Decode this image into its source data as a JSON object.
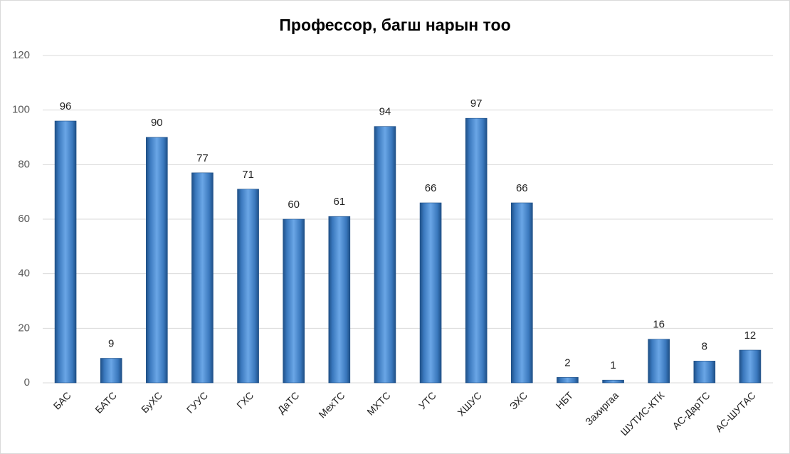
{
  "chart_data": {
    "type": "bar",
    "title": "Профессор, багш нарын тоо",
    "categories": [
      "БАС",
      "БАТС",
      "БуХС",
      "ГУУС",
      "ГХС",
      "ДаТС",
      "МехТС",
      "МХТС",
      "УТС",
      "ХШУС",
      "ЭХС",
      "НБТ",
      "Захиргаа",
      "ШУТИС-КТК",
      "АС-ДарТС",
      "АС-ШУТАС"
    ],
    "values": [
      96,
      9,
      90,
      77,
      71,
      60,
      61,
      94,
      66,
      97,
      66,
      2,
      1,
      16,
      8,
      12
    ],
    "color": "#4f8fd6",
    "ylim": [
      0,
      120
    ],
    "yticks": [
      0,
      20,
      40,
      60,
      80,
      100,
      120
    ],
    "grid": true
  }
}
